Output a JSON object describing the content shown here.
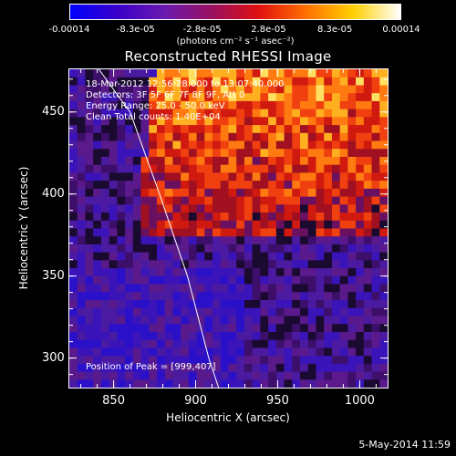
{
  "colorbar": {
    "tick_labels": [
      "-0.00014",
      "-8.3e-05",
      "-2.8e-05",
      "2.8e-05",
      "8.3e-05",
      "0.00014"
    ],
    "unit_label": "(photons cm⁻² s⁻¹ asec⁻²)",
    "range": [
      -0.00014,
      0.00014
    ],
    "colors": [
      "#0000ff",
      "#3a00c8",
      "#6a1ab0",
      "#9a1060",
      "#e01010",
      "#ff7000",
      "#ffd000",
      "#ffffff"
    ]
  },
  "chart_data": {
    "type": "heatmap",
    "title": "Reconstructed RHESSI Image",
    "xlabel": "Heliocentric X (arcsec)",
    "ylabel": "Heliocentric Y (arcsec)",
    "xlim": [
      823,
      1017
    ],
    "ylim": [
      282,
      476
    ],
    "x_ticks": [
      850,
      900,
      950,
      1000
    ],
    "y_ticks": [
      300,
      350,
      400,
      450
    ],
    "limb_curve": [
      [
        841,
        476
      ],
      [
        860,
        450
      ],
      [
        878,
        400
      ],
      [
        895,
        350
      ],
      [
        908,
        300
      ],
      [
        914,
        282
      ]
    ],
    "peak_position": [
      999,
      407
    ],
    "annotations": {
      "time_range": "18-Mar-2012 12:56:28.000 to 13:07:40.000",
      "detectors": "Detectors: 3F 5F 6F 7F 8F 9F, Att 0",
      "energy": "Energy Range: 25.0 - 50.0 keV",
      "method": "Clean     Total counts: 1.40E+04",
      "peak": "Position of Peak = [999,407]"
    }
  },
  "footer": {
    "date": "5-May-2014 11:59"
  }
}
